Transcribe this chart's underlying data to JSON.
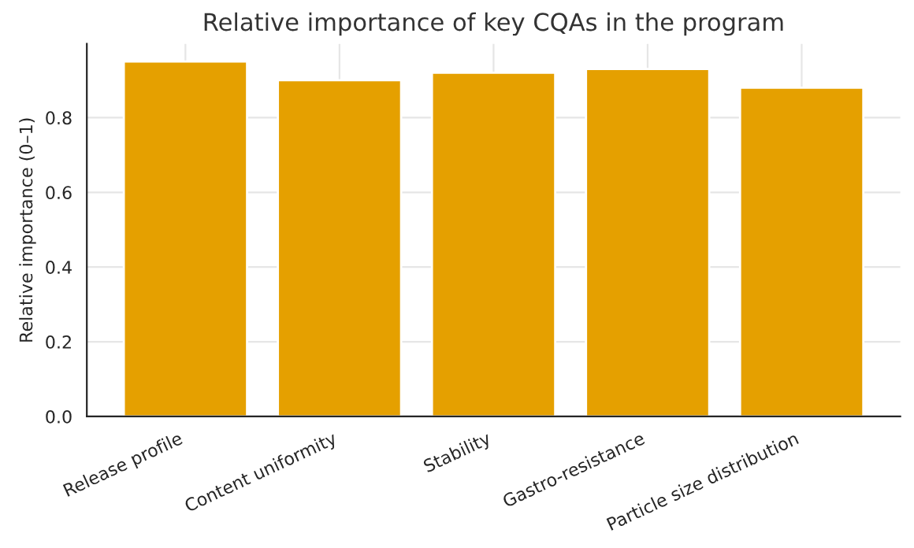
{
  "chart_data": {
    "type": "bar",
    "title": "Relative importance of key CQAs in the program",
    "ylabel": "Relative importance (0–1)",
    "categories": [
      "Release profile",
      "Content uniformity",
      "Stability",
      "Gastro-resistance",
      "Particle size distribution"
    ],
    "values": [
      0.95,
      0.9,
      0.92,
      0.93,
      0.88
    ],
    "color": "#e5a000",
    "ylim": [
      0,
      0.9975
    ],
    "yticks": [
      {
        "value": 0,
        "label": "0.0"
      },
      0.2,
      0.4,
      0.6,
      0.8
    ],
    "grid": true
  }
}
